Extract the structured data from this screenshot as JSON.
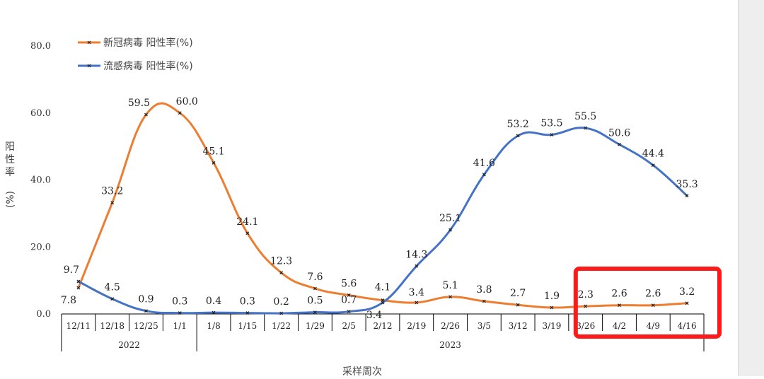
{
  "chart_data": {
    "type": "line",
    "categories": [
      "12/11",
      "12/18",
      "12/25",
      "1/1",
      "1/8",
      "1/15",
      "1/22",
      "1/29",
      "2/5",
      "2/12",
      "2/19",
      "2/26",
      "3/5",
      "3/12",
      "3/19",
      "3/26",
      "4/2",
      "4/9",
      "4/16"
    ],
    "year_groups": [
      {
        "label": "2022",
        "count": 4
      },
      {
        "label": "2023",
        "count": 15
      }
    ],
    "series": [
      {
        "name": "新冠病毒 阳性率(%)",
        "color": "#ed7d31",
        "values": [
          7.8,
          33.2,
          59.5,
          60.0,
          45.1,
          24.1,
          12.3,
          7.6,
          5.6,
          4.1,
          3.4,
          5.1,
          3.8,
          2.7,
          1.9,
          2.3,
          2.6,
          2.6,
          3.2
        ],
        "labels": [
          "7.8",
          "33.2",
          "59.5",
          "60.0",
          "45.1",
          "24.1",
          "12.3",
          "7.6",
          "5.6",
          "4.1",
          "3.4",
          "5.1",
          "3.8",
          "2.7",
          "1.9",
          "2.3",
          "2.6",
          "2.6",
          "3.2"
        ]
      },
      {
        "name": "流感病毒 阳性率(%)",
        "color": "#4472c4",
        "values": [
          9.7,
          4.5,
          0.9,
          0.3,
          0.4,
          0.3,
          0.2,
          0.5,
          0.7,
          3.4,
          14.3,
          25.1,
          41.6,
          53.2,
          53.5,
          55.5,
          50.6,
          44.4,
          35.3
        ],
        "labels": [
          "9.7",
          "4.5",
          "0.9",
          "0.3",
          "0.4",
          "0.3",
          "0.2",
          "0.5",
          "0.7",
          "3.4",
          "14.3",
          "25.1",
          "41.6",
          "53.2",
          "53.5",
          "55.5",
          "50.6",
          "44.4",
          "35.3"
        ]
      }
    ],
    "ylabel": "阳性率(%)",
    "xlabel": "采样周次",
    "ylim": [
      0,
      80
    ],
    "yticks": [
      0,
      20,
      40,
      60,
      80
    ],
    "ytick_labels": [
      "0.0",
      "20.0",
      "40.0",
      "60.0",
      "80.0"
    ],
    "grid": false,
    "legend_position": "top-left",
    "highlight": {
      "from": "3/26",
      "to": "4/16",
      "color": "#ff1a1a"
    }
  }
}
